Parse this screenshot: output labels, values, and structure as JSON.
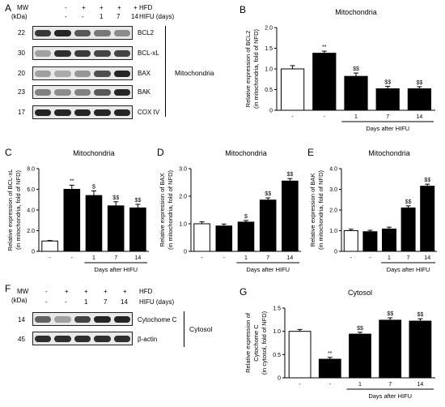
{
  "panel_labels": {
    "A": "A",
    "B": "B",
    "C": "C",
    "D": "D",
    "E": "E",
    "F": "F",
    "G": "G"
  },
  "blot_A": {
    "header": {
      "mw": "MW",
      "kda": "(kDa)",
      "hfd": "HFD",
      "hifu": "HIFU (days)",
      "hfd_marks": [
        "-",
        "+",
        "+",
        "+",
        "+"
      ],
      "hifu_marks": [
        "-",
        "-",
        "1",
        "7",
        "14"
      ]
    },
    "rows": [
      {
        "label": "BCL2",
        "mw": "22",
        "intensity": [
          0.85,
          0.95,
          0.7,
          0.55,
          0.45
        ]
      },
      {
        "label": "BCL-xL",
        "mw": "30",
        "intensity": [
          0.35,
          0.9,
          0.85,
          0.8,
          0.8
        ]
      },
      {
        "label": "BAX",
        "mw": "20",
        "intensity": [
          0.35,
          0.3,
          0.4,
          0.75,
          0.95
        ]
      },
      {
        "label": "BAK",
        "mw": "23",
        "intensity": [
          0.5,
          0.45,
          0.5,
          0.7,
          0.95
        ]
      },
      {
        "label": "COX IV",
        "mw": "17",
        "intensity": [
          0.95,
          0.95,
          0.95,
          0.95,
          0.95
        ]
      }
    ],
    "compartment": "Mitochondria"
  },
  "blot_F": {
    "header": {
      "mw": "MW",
      "kda": "(kDa)",
      "hfd": "HFD",
      "hifu": "HIFU (days)",
      "hfd_marks": [
        "-",
        "+",
        "+",
        "+",
        "+"
      ],
      "hifu_marks": [
        "-",
        "-",
        "1",
        "7",
        "14"
      ]
    },
    "rows": [
      {
        "label": "Cytochome C",
        "mw": "14",
        "intensity": [
          0.65,
          0.35,
          0.8,
          0.95,
          0.95
        ]
      },
      {
        "label": "β-actin",
        "mw": "45",
        "intensity": [
          0.9,
          0.9,
          0.9,
          0.9,
          0.9
        ]
      }
    ],
    "compartment": "Cytosol"
  },
  "chart_data": [
    {
      "panel": "B",
      "type": "bar",
      "title": "Mitochondria",
      "ylabel": [
        "Relative expression of BCL2",
        "(in mitochondria, fold of NFD)"
      ],
      "ylim": [
        0,
        2
      ],
      "yticks": [
        0,
        0.5,
        1,
        1.5,
        2
      ],
      "yticklabels": [
        "0",
        "0.5",
        "1.0",
        "1.5",
        "2.0"
      ],
      "categories": [
        "-",
        "-",
        "1",
        "7",
        "14"
      ],
      "xlabel": "Days after HIFU",
      "values": [
        1.0,
        1.38,
        0.82,
        0.52,
        0.52
      ],
      "errors": [
        0.08,
        0.05,
        0.08,
        0.06,
        0.05
      ],
      "fills": [
        "#ffffff",
        "#000000",
        "#000000",
        "#000000",
        "#000000"
      ],
      "annotations": [
        "",
        "**",
        "$$",
        "$$",
        "$$"
      ]
    },
    {
      "panel": "C",
      "type": "bar",
      "title": "Mitochondria",
      "ylabel": [
        "Relative expression of BCL-xL",
        "(in mitochondria, fold of NFD)"
      ],
      "ylim": [
        0,
        8
      ],
      "yticks": [
        0,
        2,
        4,
        6,
        8
      ],
      "yticklabels": [
        "0",
        "2.0",
        "4.0",
        "6.0",
        "8.0"
      ],
      "categories": [
        "-",
        "-",
        "1",
        "7",
        "14"
      ],
      "xlabel": "Days after HIFU",
      "values": [
        1.0,
        6.0,
        5.4,
        4.4,
        4.2
      ],
      "errors": [
        0.05,
        0.4,
        0.45,
        0.4,
        0.35
      ],
      "fills": [
        "#ffffff",
        "#000000",
        "#000000",
        "#000000",
        "#000000"
      ],
      "annotations": [
        "",
        "**",
        "$",
        "$$",
        "$$"
      ]
    },
    {
      "panel": "D",
      "type": "bar",
      "title": "Mitochondria",
      "ylabel": [
        "Relative expression of BAX",
        "(in mitochondria, fold of NFD)"
      ],
      "ylim": [
        0,
        3
      ],
      "yticks": [
        0,
        1,
        2,
        3
      ],
      "yticklabels": [
        "0",
        "1.0",
        "2.0",
        "3.0"
      ],
      "categories": [
        "-",
        "-",
        "1",
        "7",
        "14"
      ],
      "xlabel": "Days after HIFU",
      "values": [
        1.0,
        0.92,
        1.06,
        1.86,
        2.55
      ],
      "errors": [
        0.07,
        0.07,
        0.06,
        0.08,
        0.09
      ],
      "fills": [
        "#ffffff",
        "#000000",
        "#000000",
        "#000000",
        "#000000"
      ],
      "annotations": [
        "",
        "",
        "$",
        "$$",
        "$$"
      ]
    },
    {
      "panel": "E",
      "type": "bar",
      "title": "Mitochondria",
      "ylabel": [
        "Relative expression of BAK",
        "(in mitochondria, fold of NFD)"
      ],
      "ylim": [
        0,
        4
      ],
      "yticks": [
        0,
        1,
        2,
        3,
        4
      ],
      "yticklabels": [
        "0",
        "1.0",
        "2.0",
        "3.0",
        "4.0"
      ],
      "categories": [
        "-",
        "-",
        "1",
        "7",
        "14"
      ],
      "xlabel": "Days after HIFU",
      "values": [
        1.0,
        0.95,
        1.08,
        2.1,
        3.15
      ],
      "errors": [
        0.07,
        0.07,
        0.09,
        0.1,
        0.1
      ],
      "fills": [
        "#ffffff",
        "#000000",
        "#000000",
        "#000000",
        "#000000"
      ],
      "annotations": [
        "",
        "",
        "",
        "$$",
        "$$"
      ]
    },
    {
      "panel": "G",
      "type": "bar",
      "title": "Cytosol",
      "ylabel": [
        "Relative expression of",
        "Cytochome C",
        "(in cytosol, fold of NFD)"
      ],
      "ylim": [
        0,
        1.5
      ],
      "yticks": [
        0,
        0.5,
        1,
        1.5
      ],
      "yticklabels": [
        "0",
        "0.5",
        "1.0",
        "1.5"
      ],
      "categories": [
        "-",
        "-",
        "1",
        "7",
        "14"
      ],
      "xlabel": "Days after HIFU",
      "values": [
        1.0,
        0.4,
        0.94,
        1.24,
        1.22
      ],
      "errors": [
        0.04,
        0.04,
        0.04,
        0.05,
        0.05
      ],
      "fills": [
        "#ffffff",
        "#000000",
        "#000000",
        "#000000",
        "#000000"
      ],
      "annotations": [
        "",
        "**",
        "$$",
        "$$",
        "$$"
      ]
    }
  ]
}
